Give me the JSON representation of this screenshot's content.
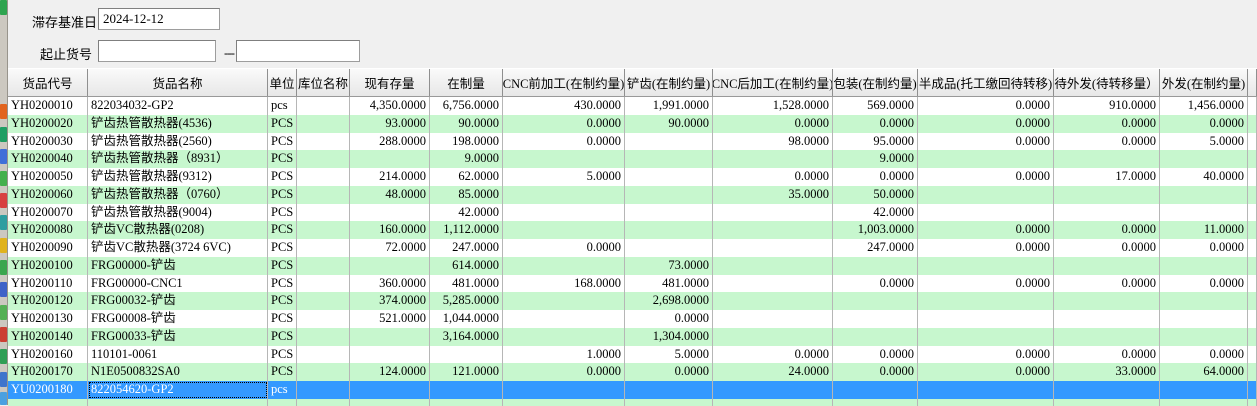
{
  "form": {
    "base_date_label": "滞存基准日",
    "base_date_value": "2024-12-12",
    "item_range_label": "起止货号",
    "item_from_value": "",
    "item_to_value": "",
    "range_separator": "---"
  },
  "table": {
    "columns": [
      {
        "label": "货品代号"
      },
      {
        "label": "货品名称"
      },
      {
        "label": "单位"
      },
      {
        "label": "库位名称"
      },
      {
        "label": "现有存量"
      },
      {
        "label": "在制量"
      },
      {
        "label": "CNC前加工(在制约量)"
      },
      {
        "label": "铲齿(在制约量)"
      },
      {
        "label": "CNC后加工(在制约量)"
      },
      {
        "label": "包装(在制约量)"
      },
      {
        "label": "半成品(托工缴回待转移)"
      },
      {
        "label": "待外发(待转移量）"
      },
      {
        "label": "外发(在制约量)"
      },
      {
        "label": ""
      }
    ],
    "rows": [
      {
        "selected": false,
        "cells": [
          "YH0200010",
          "822034032-GP2",
          "pcs",
          "",
          "4,350.0000",
          "6,756.0000",
          "430.0000",
          "1,991.0000",
          "1,528.0000",
          "569.0000",
          "0.0000",
          "910.0000",
          "1,456.0000"
        ]
      },
      {
        "selected": false,
        "cells": [
          "YH0200020",
          "铲齿热管散热器(4536)",
          "PCS",
          "",
          "93.0000",
          "90.0000",
          "0.0000",
          "90.0000",
          "0.0000",
          "0.0000",
          "0.0000",
          "0.0000",
          "0.0000"
        ]
      },
      {
        "selected": false,
        "cells": [
          "YH0200030",
          "铲齿热管散热器(2560)",
          "PCS",
          "",
          "288.0000",
          "198.0000",
          "0.0000",
          "",
          "98.0000",
          "95.0000",
          "0.0000",
          "0.0000",
          "5.0000"
        ]
      },
      {
        "selected": false,
        "cells": [
          "YH0200040",
          "铲齿热管散热器（8931）",
          "PCS",
          "",
          "",
          "9.0000",
          "",
          "",
          "",
          "9.0000",
          "",
          "",
          ""
        ]
      },
      {
        "selected": false,
        "cells": [
          "YH0200050",
          "铲齿热管散热器(9312)",
          "PCS",
          "",
          "214.0000",
          "62.0000",
          "5.0000",
          "",
          "0.0000",
          "0.0000",
          "0.0000",
          "17.0000",
          "40.0000"
        ]
      },
      {
        "selected": false,
        "cells": [
          "YH0200060",
          "铲齿热管散热器（0760）",
          "PCS",
          "",
          "48.0000",
          "85.0000",
          "",
          "",
          "35.0000",
          "50.0000",
          "",
          "",
          ""
        ]
      },
      {
        "selected": false,
        "cells": [
          "YH0200070",
          "铲齿热管散热器(9004)",
          "PCS",
          "",
          "",
          "42.0000",
          "",
          "",
          "",
          "42.0000",
          "",
          "",
          ""
        ]
      },
      {
        "selected": false,
        "cells": [
          "YH0200080",
          "铲齿VC散热器(0208)",
          "PCS",
          "",
          "160.0000",
          "1,112.0000",
          "",
          "",
          "",
          "1,003.0000",
          "0.0000",
          "0.0000",
          "11.0000"
        ]
      },
      {
        "selected": false,
        "cells": [
          "YH0200090",
          "铲齿VC散热器(3724 6VC)",
          "PCS",
          "",
          "72.0000",
          "247.0000",
          "0.0000",
          "",
          "",
          "247.0000",
          "0.0000",
          "0.0000",
          "0.0000"
        ]
      },
      {
        "selected": false,
        "cells": [
          "YH0200100",
          "FRG00000-铲齿",
          "PCS",
          "",
          "",
          "614.0000",
          "",
          "73.0000",
          "",
          "",
          "",
          "",
          ""
        ]
      },
      {
        "selected": false,
        "cells": [
          "YH0200110",
          "FRG00000-CNC1",
          "PCS",
          "",
          "360.0000",
          "481.0000",
          "168.0000",
          "481.0000",
          "",
          "0.0000",
          "0.0000",
          "0.0000",
          "0.0000"
        ]
      },
      {
        "selected": false,
        "cells": [
          "YH0200120",
          "FRG00032-铲齿",
          "PCS",
          "",
          "374.0000",
          "5,285.0000",
          "",
          "2,698.0000",
          "",
          "",
          "",
          "",
          ""
        ]
      },
      {
        "selected": false,
        "cells": [
          "YH0200130",
          "FRG00008-铲齿",
          "PCS",
          "",
          "521.0000",
          "1,044.0000",
          "",
          "0.0000",
          "",
          "",
          "",
          "",
          ""
        ]
      },
      {
        "selected": false,
        "cells": [
          "YH0200140",
          "FRG00033-铲齿",
          "PCS",
          "",
          "",
          "3,164.0000",
          "",
          "1,304.0000",
          "",
          "",
          "",
          "",
          ""
        ]
      },
      {
        "selected": false,
        "cells": [
          "YH0200160",
          "110101-0061",
          "PCS",
          "",
          "",
          "",
          "1.0000",
          "5.0000",
          "0.0000",
          "0.0000",
          "0.0000",
          "0.0000",
          "0.0000"
        ]
      },
      {
        "selected": false,
        "cells": [
          "YH0200170",
          "N1E0500832SA0",
          "PCS",
          "",
          "124.0000",
          "121.0000",
          "0.0000",
          "0.0000",
          "24.0000",
          "0.0000",
          "0.0000",
          "33.0000",
          "64.0000"
        ]
      },
      {
        "selected": true,
        "cells": [
          "YU0200180",
          "822054620-GP2",
          "pcs",
          "",
          "",
          "",
          "",
          "",
          "",
          "",
          "",
          "",
          ""
        ]
      }
    ]
  },
  "colors": {
    "row_alt_green": "#c7f7ce",
    "selected_row_blue": "#3399ff",
    "form_background": "#f0f0f0",
    "gridline_gray": "#b6b6b6"
  }
}
